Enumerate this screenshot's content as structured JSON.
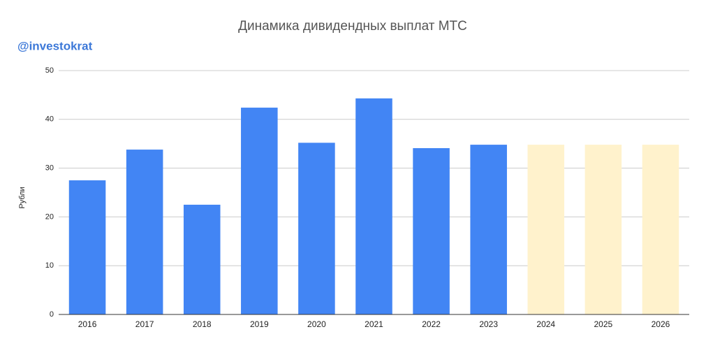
{
  "chart_data": {
    "type": "bar",
    "title": "Динамика дивидендных выплат МТС",
    "watermark": "@investokrat",
    "y_label": "Рубли",
    "categories": [
      "2016",
      "2017",
      "2018",
      "2019",
      "2020",
      "2021",
      "2022",
      "2023",
      "2024",
      "2025",
      "2026"
    ],
    "values": [
      27.5,
      33.8,
      22.5,
      42.4,
      35.2,
      44.3,
      34.1,
      34.8,
      34.8,
      34.8,
      34.8
    ],
    "colors": [
      "#4285f4",
      "#4285f4",
      "#4285f4",
      "#4285f4",
      "#4285f4",
      "#4285f4",
      "#4285f4",
      "#4285f4",
      "#fff2cc",
      "#fff2cc",
      "#fff2cc"
    ],
    "ylim": [
      0,
      50
    ],
    "yticks": [
      0,
      10,
      20,
      30,
      40,
      50
    ],
    "grid": true
  }
}
